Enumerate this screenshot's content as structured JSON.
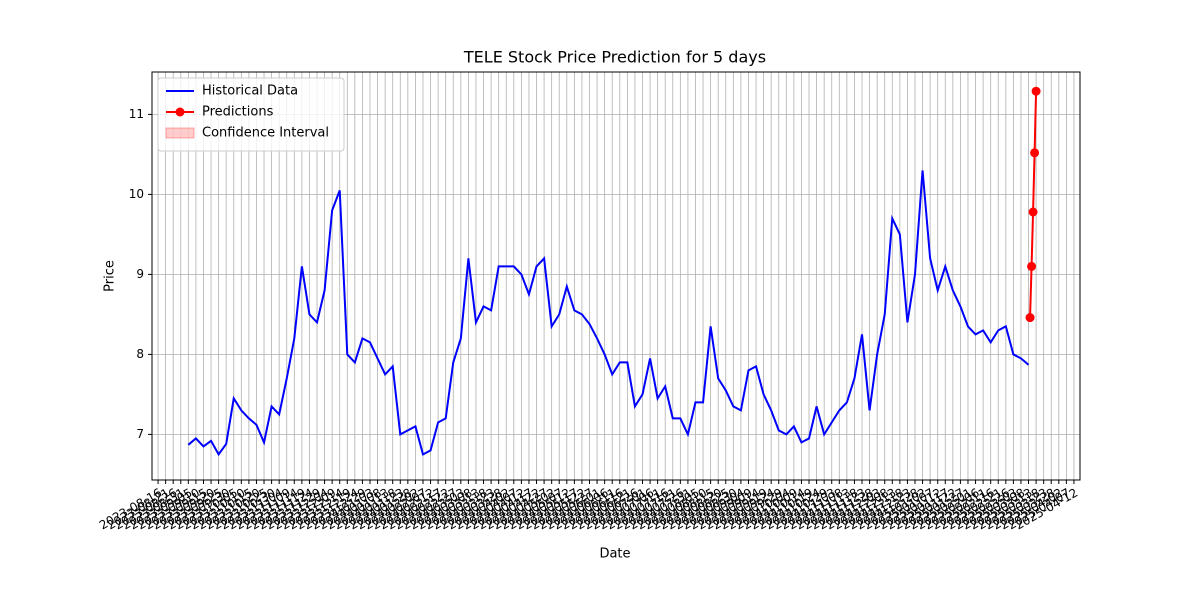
{
  "chart_data": {
    "type": "line",
    "title": "TELE Stock Price Prediction for 5 days",
    "x_label": "Date",
    "y_label": "Price",
    "grid": true,
    "legend": "upper left",
    "xlim": [
      "2023-08-12",
      "2025-04-16"
    ],
    "ylim": [
      6.43,
      11.53
    ],
    "yticks": [
      7,
      8,
      9,
      10,
      11
    ],
    "xticks": [
      "2023-08-16",
      "2023-08-21",
      "2023-08-26",
      "2023-08-31",
      "2023-09-05",
      "2023-09-10",
      "2023-09-15",
      "2023-09-20",
      "2023-09-25",
      "2023-09-30",
      "2023-10-05",
      "2023-10-10",
      "2023-10-15",
      "2023-10-20",
      "2023-10-25",
      "2023-10-30",
      "2023-11-04",
      "2023-11-09",
      "2023-11-14",
      "2023-11-19",
      "2023-11-24",
      "2023-11-29",
      "2023-12-04",
      "2023-12-09",
      "2023-12-14",
      "2023-12-19",
      "2023-12-24",
      "2023-12-29",
      "2024-01-03",
      "2024-01-08",
      "2024-01-13",
      "2024-01-18",
      "2024-01-23",
      "2024-01-28",
      "2024-02-02",
      "2024-02-07",
      "2024-02-12",
      "2024-02-17",
      "2024-02-22",
      "2024-02-27",
      "2024-03-03",
      "2024-03-08",
      "2024-03-13",
      "2024-03-18",
      "2024-03-23",
      "2024-03-28",
      "2024-04-02",
      "2024-04-07",
      "2024-04-12",
      "2024-04-17",
      "2024-04-22",
      "2024-04-27",
      "2024-05-02",
      "2024-05-07",
      "2024-05-12",
      "2024-05-17",
      "2024-05-22",
      "2024-05-27",
      "2024-06-01",
      "2024-06-06",
      "2024-06-11",
      "2024-06-16",
      "2024-06-21",
      "2024-06-26",
      "2024-07-01",
      "2024-07-06",
      "2024-07-11",
      "2024-07-16",
      "2024-07-21",
      "2024-07-26",
      "2024-07-31",
      "2024-08-05",
      "2024-08-10",
      "2024-08-15",
      "2024-08-20",
      "2024-08-25",
      "2024-08-30",
      "2024-09-04",
      "2024-09-09",
      "2024-09-14",
      "2024-09-19",
      "2024-09-24",
      "2024-09-29",
      "2024-10-04",
      "2024-10-09",
      "2024-10-14",
      "2024-10-19",
      "2024-10-24",
      "2024-10-29",
      "2024-11-03",
      "2024-11-08",
      "2024-11-13",
      "2024-11-18",
      "2024-11-23",
      "2024-11-28",
      "2024-12-03",
      "2024-12-08",
      "2024-12-13",
      "2024-12-18",
      "2024-12-23",
      "2024-12-28",
      "2025-01-02",
      "2025-01-07",
      "2025-01-12",
      "2025-01-17",
      "2025-01-22",
      "2025-01-27",
      "2025-02-01",
      "2025-02-06",
      "2025-02-11",
      "2025-02-16",
      "2025-02-21",
      "2025-02-26",
      "2025-03-03",
      "2025-03-08",
      "2025-03-13",
      "2025-03-18",
      "2025-03-23",
      "2025-03-28",
      "2025-04-02",
      "2025-04-07",
      "2025-04-12"
    ],
    "series": [
      {
        "name": "Historical Data",
        "color": "#0000ff",
        "marker": false,
        "x": [
          "2023-09-05",
          "2023-09-10",
          "2023-09-15",
          "2023-09-20",
          "2023-09-25",
          "2023-09-30",
          "2023-10-05",
          "2023-10-10",
          "2023-10-15",
          "2023-10-20",
          "2023-10-25",
          "2023-10-30",
          "2023-11-04",
          "2023-11-09",
          "2023-11-14",
          "2023-11-19",
          "2023-11-24",
          "2023-11-29",
          "2023-12-04",
          "2023-12-09",
          "2023-12-14",
          "2023-12-19",
          "2023-12-24",
          "2023-12-29",
          "2024-01-03",
          "2024-01-08",
          "2024-01-13",
          "2024-01-18",
          "2024-01-23",
          "2024-01-28",
          "2024-02-02",
          "2024-02-07",
          "2024-02-12",
          "2024-02-17",
          "2024-02-22",
          "2024-02-27",
          "2024-03-03",
          "2024-03-08",
          "2024-03-13",
          "2024-03-18",
          "2024-03-23",
          "2024-03-28",
          "2024-04-02",
          "2024-04-07",
          "2024-04-12",
          "2024-04-17",
          "2024-04-22",
          "2024-04-27",
          "2024-05-02",
          "2024-05-07",
          "2024-05-12",
          "2024-05-17",
          "2024-05-22",
          "2024-05-27",
          "2024-06-01",
          "2024-06-06",
          "2024-06-11",
          "2024-06-16",
          "2024-06-21",
          "2024-06-26",
          "2024-07-01",
          "2024-07-06",
          "2024-07-11",
          "2024-07-16",
          "2024-07-21",
          "2024-07-26",
          "2024-07-31",
          "2024-08-05",
          "2024-08-10",
          "2024-08-15",
          "2024-08-20",
          "2024-08-25",
          "2024-08-30",
          "2024-09-04",
          "2024-09-09",
          "2024-09-14",
          "2024-09-19",
          "2024-09-24",
          "2024-09-29",
          "2024-10-04",
          "2024-10-09",
          "2024-10-14",
          "2024-10-19",
          "2024-10-24",
          "2024-10-29",
          "2024-11-03",
          "2024-11-08",
          "2024-11-13",
          "2024-11-18",
          "2024-11-23",
          "2024-11-28",
          "2024-12-03",
          "2024-12-08",
          "2024-12-13",
          "2024-12-18",
          "2024-12-23",
          "2024-12-28",
          "2025-01-02",
          "2025-01-07",
          "2025-01-12",
          "2025-01-17",
          "2025-01-22",
          "2025-01-27",
          "2025-02-01",
          "2025-02-06",
          "2025-02-11",
          "2025-02-16",
          "2025-02-21",
          "2025-02-26",
          "2025-03-03",
          "2025-03-08",
          "2025-03-13"
        ],
        "values": [
          6.87,
          6.95,
          6.85,
          6.92,
          6.75,
          6.88,
          7.45,
          7.3,
          7.2,
          7.12,
          6.9,
          7.35,
          7.25,
          7.7,
          8.2,
          9.1,
          8.5,
          8.4,
          8.8,
          9.8,
          10.05,
          8.0,
          7.9,
          8.2,
          8.15,
          7.95,
          7.75,
          7.85,
          7.0,
          7.05,
          7.1,
          6.75,
          6.8,
          7.15,
          7.2,
          7.9,
          8.2,
          9.2,
          8.4,
          8.6,
          8.55,
          9.1,
          9.1,
          9.1,
          9.0,
          8.75,
          9.1,
          9.2,
          8.35,
          8.5,
          8.85,
          8.55,
          8.5,
          8.38,
          8.2,
          8.0,
          7.75,
          7.9,
          7.9,
          7.35,
          7.5,
          7.95,
          7.45,
          7.6,
          7.2,
          7.2,
          7.0,
          7.4,
          7.4,
          8.35,
          7.7,
          7.55,
          7.35,
          7.3,
          7.8,
          7.85,
          7.5,
          7.3,
          7.05,
          7.0,
          7.1,
          6.9,
          6.95,
          7.35,
          7.0,
          7.15,
          7.3,
          7.4,
          7.7,
          8.25,
          7.3,
          8.0,
          8.5,
          9.7,
          9.5,
          8.4,
          9.0,
          10.3,
          9.2,
          8.8,
          9.1,
          8.8,
          8.6,
          8.35,
          8.25,
          8.3,
          8.15,
          8.3,
          8.35,
          8.0,
          7.95,
          7.87
        ]
      },
      {
        "name": "Predictions",
        "color": "#ff0000",
        "marker": true,
        "x": [
          "2025-03-14",
          "2025-03-15",
          "2025-03-16",
          "2025-03-17",
          "2025-03-18"
        ],
        "values": [
          8.46,
          9.1,
          9.78,
          10.52,
          11.29
        ]
      }
    ],
    "confidence_interval": {
      "name": "Confidence Interval",
      "color": "#ff0000"
    }
  }
}
